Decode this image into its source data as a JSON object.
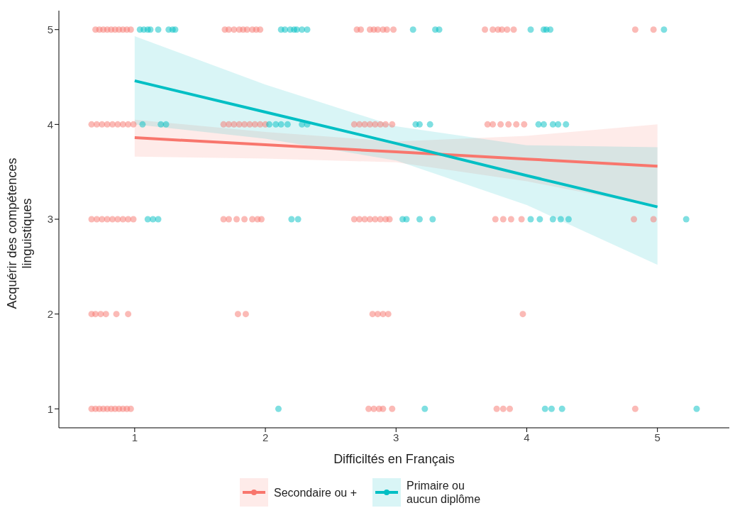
{
  "chart_data": {
    "type": "scatter",
    "xlabel": "Difficiltés en Français",
    "ylabel": "Acquérir des compétences linguistiques",
    "xlim": [
      0.42,
      5.55
    ],
    "xticks": [
      1,
      2,
      3,
      4,
      5
    ],
    "ylim": [
      0.8,
      5.2
    ],
    "yticks": [
      1,
      2,
      3,
      4,
      5
    ],
    "legend": "bottom",
    "series": [
      {
        "marker": "circle",
        "color": "#f8766d",
        "x": [
          0.7,
          0.73,
          0.76,
          0.79,
          0.82,
          0.85,
          0.88,
          0.91,
          0.94,
          0.97,
          1.69,
          1.72,
          1.76,
          1.8,
          1.83,
          1.86,
          1.9,
          1.93,
          1.96,
          2.7,
          2.73,
          2.8,
          2.83,
          2.86,
          2.9,
          2.93,
          2.98,
          3.68,
          3.74,
          3.78,
          3.81,
          3.85,
          3.9,
          4.83,
          4.97,
          0.67,
          0.71,
          0.75,
          0.79,
          0.83,
          0.87,
          0.91,
          0.95,
          0.99,
          1.68,
          1.72,
          1.76,
          1.8,
          1.84,
          1.88,
          1.92,
          1.96,
          2.0,
          2.68,
          2.72,
          2.76,
          2.8,
          2.84,
          2.88,
          2.92,
          2.97,
          3.7,
          3.74,
          3.8,
          3.86,
          3.92,
          3.98,
          0.67,
          0.71,
          0.75,
          0.79,
          0.83,
          0.87,
          0.91,
          0.95,
          0.99,
          1.68,
          1.72,
          1.78,
          1.84,
          1.9,
          1.94,
          1.97,
          2.68,
          2.72,
          2.76,
          2.8,
          2.84,
          2.88,
          2.92,
          2.95,
          3.76,
          3.82,
          3.88,
          3.96,
          4.82,
          4.97,
          0.67,
          0.7,
          0.74,
          0.78,
          0.86,
          0.95,
          1.79,
          1.85,
          2.82,
          2.86,
          2.9,
          2.94,
          3.97,
          0.67,
          0.7,
          0.73,
          0.76,
          0.79,
          0.82,
          0.85,
          0.88,
          0.91,
          0.94,
          0.97,
          2.79,
          2.83,
          2.87,
          2.9,
          2.97,
          3.77,
          3.82,
          3.87,
          4.83
        ],
        "values": [
          5,
          5,
          5,
          5,
          5,
          5,
          5,
          5,
          5,
          5,
          5,
          5,
          5,
          5,
          5,
          5,
          5,
          5,
          5,
          5,
          5,
          5,
          5,
          5,
          5,
          5,
          5,
          5,
          5,
          5,
          5,
          5,
          5,
          5,
          5,
          4,
          4,
          4,
          4,
          4,
          4,
          4,
          4,
          4,
          4,
          4,
          4,
          4,
          4,
          4,
          4,
          4,
          4,
          4,
          4,
          4,
          4,
          4,
          4,
          4,
          4,
          4,
          4,
          4,
          4,
          4,
          4,
          3,
          3,
          3,
          3,
          3,
          3,
          3,
          3,
          3,
          3,
          3,
          3,
          3,
          3,
          3,
          3,
          3,
          3,
          3,
          3,
          3,
          3,
          3,
          3,
          3,
          3,
          3,
          3,
          3,
          3,
          2,
          2,
          2,
          2,
          2,
          2,
          2,
          2,
          2,
          2,
          2,
          2,
          2,
          1,
          1,
          1,
          1,
          1,
          1,
          1,
          1,
          1,
          1,
          1,
          1,
          1,
          1,
          1,
          1,
          1,
          1,
          1,
          1
        ]
      },
      {
        "marker": "circle",
        "color": "#00bfc4",
        "x": [
          1.04,
          1.07,
          1.1,
          1.12,
          1.18,
          1.26,
          1.29,
          1.31,
          2.12,
          2.15,
          2.19,
          2.22,
          2.24,
          2.28,
          2.32,
          3.13,
          3.3,
          3.33,
          4.03,
          4.13,
          4.15,
          4.18,
          5.05,
          1.06,
          1.2,
          1.24,
          2.03,
          2.08,
          2.12,
          2.17,
          2.28,
          2.32,
          3.15,
          3.18,
          3.26,
          4.09,
          4.13,
          4.2,
          4.24,
          4.3,
          1.1,
          1.14,
          1.18,
          2.2,
          2.25,
          3.05,
          3.08,
          3.18,
          3.28,
          4.03,
          4.1,
          4.2,
          4.26,
          4.32,
          5.22,
          2.1,
          3.22,
          4.14,
          4.19,
          4.27,
          5.3
        ],
        "values": [
          5,
          5,
          5,
          5,
          5,
          5,
          5,
          5,
          5,
          5,
          5,
          5,
          5,
          5,
          5,
          5,
          5,
          5,
          5,
          5,
          5,
          5,
          5,
          4,
          4,
          4,
          4,
          4,
          4,
          4,
          4,
          4,
          4,
          4,
          4,
          4,
          4,
          4,
          4,
          4,
          3,
          3,
          3,
          3,
          3,
          3,
          3,
          3,
          3,
          3,
          3,
          3,
          3,
          3,
          3,
          1,
          1,
          1,
          1,
          1,
          1
        ]
      },
      {
        "type": "line",
        "marker": "none",
        "name": "Secondaire ou +",
        "color": "#f8766d",
        "x": [
          1,
          2,
          3,
          4,
          5
        ],
        "values": [
          3.86,
          3.785,
          3.71,
          3.635,
          3.56
        ],
        "lower": [
          3.66,
          3.64,
          3.6,
          3.4,
          3.13
        ],
        "upper": [
          4.05,
          3.92,
          3.82,
          3.88,
          4.0
        ]
      },
      {
        "type": "line",
        "marker": "none",
        "name": "Primaire ou aucun diplôme",
        "color": "#00bfc4",
        "x": [
          1,
          2,
          3,
          4,
          5
        ],
        "values": [
          4.46,
          4.13,
          3.8,
          3.46,
          3.13
        ],
        "lower": [
          4.0,
          3.85,
          3.62,
          3.15,
          2.52
        ],
        "upper": [
          4.93,
          4.42,
          3.98,
          3.78,
          3.76
        ]
      }
    ]
  }
}
